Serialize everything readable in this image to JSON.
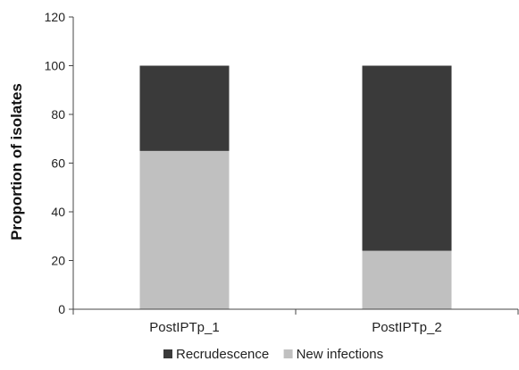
{
  "chart_data": {
    "type": "bar",
    "stacked": true,
    "categories": [
      "PostIPTp_1",
      "PostIPTp_2"
    ],
    "series": [
      {
        "name": "New infections",
        "values": [
          65,
          24
        ],
        "color": "#c0c0c0"
      },
      {
        "name": "Recrudescence",
        "values": [
          35,
          76
        ],
        "color": "#3a3a3a"
      }
    ],
    "legend_order": [
      "Recrudescence",
      "New infections"
    ],
    "title": "",
    "xlabel": "",
    "ylabel": "Proportion of isolates",
    "ylim": [
      0,
      120
    ],
    "yticks": [
      0,
      20,
      40,
      60,
      80,
      100,
      120
    ],
    "grid": false,
    "legend_position": "bottom"
  }
}
